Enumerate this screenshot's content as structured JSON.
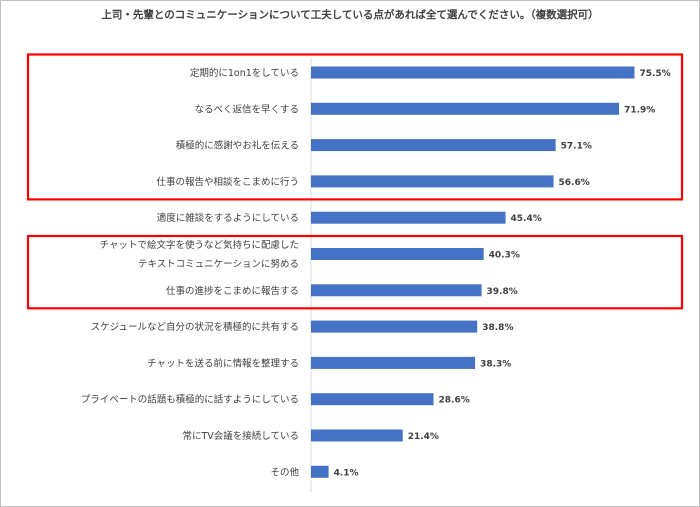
{
  "chart_data": {
    "type": "bar",
    "orientation": "horizontal",
    "title": "上司・先輩とのコミュニケーションについて工夫している点があれば全て選んでください。（複数選択可）",
    "categories": [
      [
        "定期的に1on1をしている"
      ],
      [
        "なるべく返信を早くする"
      ],
      [
        "積極的に感謝やお礼を伝える"
      ],
      [
        "仕事の報告や相談をこまめに行う"
      ],
      [
        "適度に雑談をするようにしている"
      ],
      [
        "チャットで絵文字を使うなど気持ちに配慮した",
        "テキストコミュニケーションに努める"
      ],
      [
        "仕事の進捗をこまめに報告する"
      ],
      [
        "スケジュールなど自分の状況を積極的に共有する"
      ],
      [
        "チャットを送る前に情報を整理する"
      ],
      [
        "プライベートの話題も積極的に話すようにしている"
      ],
      [
        "常にTV会議を接続している"
      ],
      [
        "その他"
      ]
    ],
    "values": [
      75.5,
      71.9,
      57.1,
      56.6,
      45.4,
      40.3,
      39.8,
      38.8,
      38.3,
      28.6,
      21.4,
      4.1
    ],
    "value_labels": [
      "75.5%",
      "71.9%",
      "57.1%",
      "56.6%",
      "45.4%",
      "40.3%",
      "39.8%",
      "38.8%",
      "38.3%",
      "28.6%",
      "21.4%",
      "4.1%"
    ],
    "xlim": [
      0,
      100
    ],
    "grid": false,
    "legend": "none",
    "bar_color": "#4472c4",
    "highlight_groups": [
      [
        0,
        3
      ],
      [
        5,
        6
      ]
    ],
    "highlight_color": "#ff0000"
  }
}
